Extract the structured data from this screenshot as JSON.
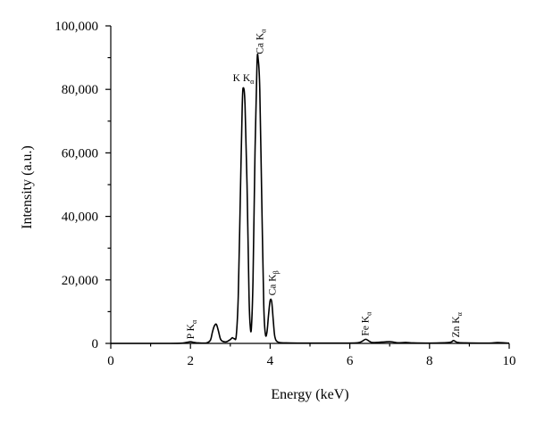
{
  "chart_data": {
    "type": "line",
    "title": "",
    "xlabel": "Energy (keV)",
    "ylabel": "Intensity (a.u.)",
    "xlim": [
      0,
      10
    ],
    "ylim": [
      0,
      100000
    ],
    "x_ticks": [
      0,
      2,
      4,
      6,
      8,
      10
    ],
    "y_ticks": [
      0,
      20000,
      40000,
      60000,
      80000,
      100000
    ],
    "x_tick_labels": [
      "0",
      "2",
      "4",
      "6",
      "8",
      "10"
    ],
    "y_tick_labels": [
      "0",
      "20,000",
      "40,000",
      "60,000",
      "80,000",
      "100,000"
    ],
    "grid": false,
    "legend": "none",
    "series": [
      {
        "color": "#000000",
        "points": [
          [
            0.0,
            0
          ],
          [
            0.5,
            0
          ],
          [
            1.0,
            0
          ],
          [
            1.5,
            0
          ],
          [
            1.8,
            100
          ],
          [
            1.9,
            300
          ],
          [
            2.0,
            500
          ],
          [
            2.1,
            300
          ],
          [
            2.2,
            150
          ],
          [
            2.4,
            150
          ],
          [
            2.5,
            1000
          ],
          [
            2.55,
            3500
          ],
          [
            2.6,
            5500
          ],
          [
            2.65,
            6000
          ],
          [
            2.7,
            4000
          ],
          [
            2.75,
            1500
          ],
          [
            2.8,
            700
          ],
          [
            2.9,
            500
          ],
          [
            3.0,
            1200
          ],
          [
            3.05,
            1800
          ],
          [
            3.1,
            1500
          ],
          [
            3.15,
            2500
          ],
          [
            3.2,
            15000
          ],
          [
            3.25,
            45000
          ],
          [
            3.3,
            75000
          ],
          [
            3.33,
            80500
          ],
          [
            3.37,
            75000
          ],
          [
            3.42,
            50000
          ],
          [
            3.47,
            15000
          ],
          [
            3.5,
            5500
          ],
          [
            3.53,
            5000
          ],
          [
            3.57,
            20000
          ],
          [
            3.62,
            60000
          ],
          [
            3.67,
            88000
          ],
          [
            3.7,
            89500
          ],
          [
            3.74,
            80000
          ],
          [
            3.79,
            45000
          ],
          [
            3.84,
            12000
          ],
          [
            3.88,
            3000
          ],
          [
            3.92,
            3500
          ],
          [
            3.96,
            9000
          ],
          [
            4.0,
            13500
          ],
          [
            4.04,
            13000
          ],
          [
            4.08,
            7000
          ],
          [
            4.12,
            2000
          ],
          [
            4.2,
            400
          ],
          [
            4.4,
            150
          ],
          [
            4.8,
            100
          ],
          [
            5.5,
            100
          ],
          [
            5.9,
            100
          ],
          [
            6.2,
            200
          ],
          [
            6.3,
            600
          ],
          [
            6.4,
            1300
          ],
          [
            6.5,
            600
          ],
          [
            6.6,
            250
          ],
          [
            7.0,
            550
          ],
          [
            7.2,
            200
          ],
          [
            7.4,
            300
          ],
          [
            7.6,
            150
          ],
          [
            8.0,
            100
          ],
          [
            8.5,
            300
          ],
          [
            8.6,
            900
          ],
          [
            8.7,
            300
          ],
          [
            8.9,
            150
          ],
          [
            9.5,
            100
          ],
          [
            9.7,
            250
          ],
          [
            10.0,
            100
          ]
        ]
      }
    ],
    "annotations": [
      {
        "main": "P K",
        "sub": "α",
        "x": 2.0,
        "y": 800,
        "rotate": -90
      },
      {
        "main": "K K",
        "sub": "α",
        "x": 3.33,
        "y": 81500,
        "rotate": 0
      },
      {
        "main": "Ca K",
        "sub": "α",
        "x": 3.73,
        "y": 90500,
        "rotate": -90
      },
      {
        "main": "Ca K",
        "sub": "β",
        "x": 4.05,
        "y": 14500,
        "rotate": -90
      },
      {
        "main": "Fe K",
        "sub": "α",
        "x": 6.38,
        "y": 1800,
        "rotate": -90
      },
      {
        "main": "Zn K",
        "sub": "α",
        "x": 8.65,
        "y": 1300,
        "rotate": -90
      }
    ]
  }
}
